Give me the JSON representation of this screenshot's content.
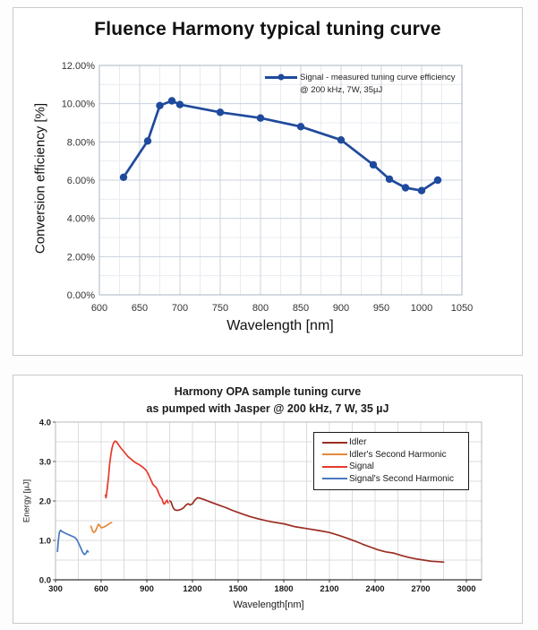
{
  "chart_data": [
    {
      "type": "line",
      "title": "Fluence Harmony typical tuning curve",
      "xlabel": "Wavelength [nm]",
      "ylabel": "Conversion efficiency [%]",
      "xlim": [
        600,
        1050
      ],
      "ylim": [
        0,
        12
      ],
      "x_ticks": [
        600,
        650,
        700,
        750,
        800,
        850,
        900,
        950,
        1000,
        1050
      ],
      "y_ticks": [
        {
          "v": 0,
          "label": "0.00%"
        },
        {
          "v": 2,
          "label": "2.00%"
        },
        {
          "v": 4,
          "label": "4.00%"
        },
        {
          "v": 6,
          "label": "6.00%"
        },
        {
          "v": 8,
          "label": "8.00%"
        },
        {
          "v": 10,
          "label": "10.00%"
        },
        {
          "v": 12,
          "label": "12.00%"
        }
      ],
      "x_minor_step": 25,
      "y_minor_step": 1,
      "grid": "on",
      "legend_position": "inside-top-right",
      "legend_line1": "Signal - measured tuning curve efficiency",
      "legend_line2": "@ 200 kHz, 7W, 35µJ",
      "series": [
        {
          "name": "Signal - measured tuning curve efficiency @ 200 kHz, 7W, 35µJ",
          "color": "#1f4a9c",
          "marker": "circle",
          "x": [
            630,
            660,
            675,
            690,
            700,
            750,
            800,
            850,
            900,
            940,
            960,
            980,
            1000,
            1020
          ],
          "y": [
            6.15,
            8.05,
            9.9,
            10.15,
            9.95,
            9.55,
            9.25,
            8.8,
            8.1,
            6.8,
            6.05,
            5.6,
            5.45,
            6.0
          ]
        }
      ]
    },
    {
      "type": "line",
      "title": "Harmony OPA sample tuning curve",
      "subtitle": "as pumped with Jasper @ 200 kHz, 7 W, 35 µJ",
      "xlabel": "Wavelength[nm]",
      "ylabel": "Energy [µJ]",
      "xlim": [
        300,
        3100
      ],
      "ylim": [
        0,
        4
      ],
      "x_ticks": [
        300,
        600,
        900,
        1200,
        1500,
        1800,
        2100,
        2400,
        2700,
        3000
      ],
      "y_ticks": [
        {
          "v": 0,
          "label": "0.0"
        },
        {
          "v": 1,
          "label": "1.0"
        },
        {
          "v": 2,
          "label": "2.0"
        },
        {
          "v": 3,
          "label": "3.0"
        },
        {
          "v": 4,
          "label": "4.0"
        }
      ],
      "x_minor_step": 150,
      "y_minor_step": 0.5,
      "grid": "on",
      "legend_position": "upper-right-box",
      "series": [
        {
          "name": "Idler",
          "color": "#9b2d23",
          "points": [
            [
              1052,
              2.0
            ],
            [
              1060,
              1.97
            ],
            [
              1070,
              1.85
            ],
            [
              1082,
              1.78
            ],
            [
              1100,
              1.76
            ],
            [
              1120,
              1.78
            ],
            [
              1140,
              1.82
            ],
            [
              1158,
              1.9
            ],
            [
              1172,
              1.93
            ],
            [
              1185,
              1.9
            ],
            [
              1200,
              1.93
            ],
            [
              1215,
              2.02
            ],
            [
              1232,
              2.08
            ],
            [
              1250,
              2.07
            ],
            [
              1280,
              2.03
            ],
            [
              1320,
              1.97
            ],
            [
              1370,
              1.9
            ],
            [
              1420,
              1.83
            ],
            [
              1470,
              1.75
            ],
            [
              1520,
              1.68
            ],
            [
              1580,
              1.6
            ],
            [
              1650,
              1.53
            ],
            [
              1720,
              1.47
            ],
            [
              1800,
              1.42
            ],
            [
              1870,
              1.35
            ],
            [
              1950,
              1.3
            ],
            [
              2030,
              1.25
            ],
            [
              2100,
              1.2
            ],
            [
              2160,
              1.13
            ],
            [
              2220,
              1.05
            ],
            [
              2270,
              0.98
            ],
            [
              2320,
              0.9
            ],
            [
              2370,
              0.83
            ],
            [
              2420,
              0.76
            ],
            [
              2470,
              0.71
            ],
            [
              2520,
              0.68
            ],
            [
              2570,
              0.62
            ],
            [
              2620,
              0.57
            ],
            [
              2670,
              0.53
            ],
            [
              2720,
              0.5
            ],
            [
              2770,
              0.47
            ],
            [
              2820,
              0.46
            ],
            [
              2850,
              0.45
            ]
          ]
        },
        {
          "name": "Idler's Second Harmonic",
          "color": "#e2893b",
          "points": [
            [
              533,
              1.36
            ],
            [
              543,
              1.24
            ],
            [
              552,
              1.2
            ],
            [
              562,
              1.23
            ],
            [
              572,
              1.32
            ],
            [
              582,
              1.41
            ],
            [
              590,
              1.38
            ],
            [
              600,
              1.32
            ],
            [
              612,
              1.33
            ],
            [
              628,
              1.36
            ],
            [
              645,
              1.4
            ],
            [
              660,
              1.44
            ],
            [
              668,
              1.45
            ]
          ]
        },
        {
          "name": "Signal",
          "color": "#e6392b",
          "points": [
            [
              628,
              2.15
            ],
            [
              632,
              2.08
            ],
            [
              636,
              2.18
            ],
            [
              640,
              2.32
            ],
            [
              648,
              2.6
            ],
            [
              655,
              2.9
            ],
            [
              663,
              3.15
            ],
            [
              672,
              3.35
            ],
            [
              682,
              3.47
            ],
            [
              692,
              3.52
            ],
            [
              702,
              3.5
            ],
            [
              715,
              3.42
            ],
            [
              730,
              3.34
            ],
            [
              750,
              3.25
            ],
            [
              775,
              3.13
            ],
            [
              800,
              3.05
            ],
            [
              825,
              2.97
            ],
            [
              850,
              2.92
            ],
            [
              875,
              2.85
            ],
            [
              895,
              2.78
            ],
            [
              910,
              2.68
            ],
            [
              925,
              2.55
            ],
            [
              940,
              2.42
            ],
            [
              950,
              2.38
            ],
            [
              960,
              2.35
            ],
            [
              970,
              2.28
            ],
            [
              980,
              2.18
            ],
            [
              990,
              2.1
            ],
            [
              1000,
              2.05
            ],
            [
              1008,
              1.95
            ],
            [
              1015,
              1.92
            ],
            [
              1025,
              1.98
            ],
            [
              1033,
              2.02
            ],
            [
              1040,
              1.95
            ]
          ]
        },
        {
          "name": "Signal's Second Harmonic",
          "color": "#4779be",
          "points": [
            [
              313,
              0.72
            ],
            [
              318,
              0.98
            ],
            [
              325,
              1.2
            ],
            [
              333,
              1.26
            ],
            [
              345,
              1.22
            ],
            [
              370,
              1.17
            ],
            [
              400,
              1.12
            ],
            [
              425,
              1.08
            ],
            [
              440,
              1.02
            ],
            [
              452,
              0.93
            ],
            [
              465,
              0.82
            ],
            [
              478,
              0.7
            ],
            [
              490,
              0.64
            ],
            [
              500,
              0.67
            ],
            [
              508,
              0.74
            ],
            [
              515,
              0.71
            ]
          ]
        }
      ]
    }
  ]
}
